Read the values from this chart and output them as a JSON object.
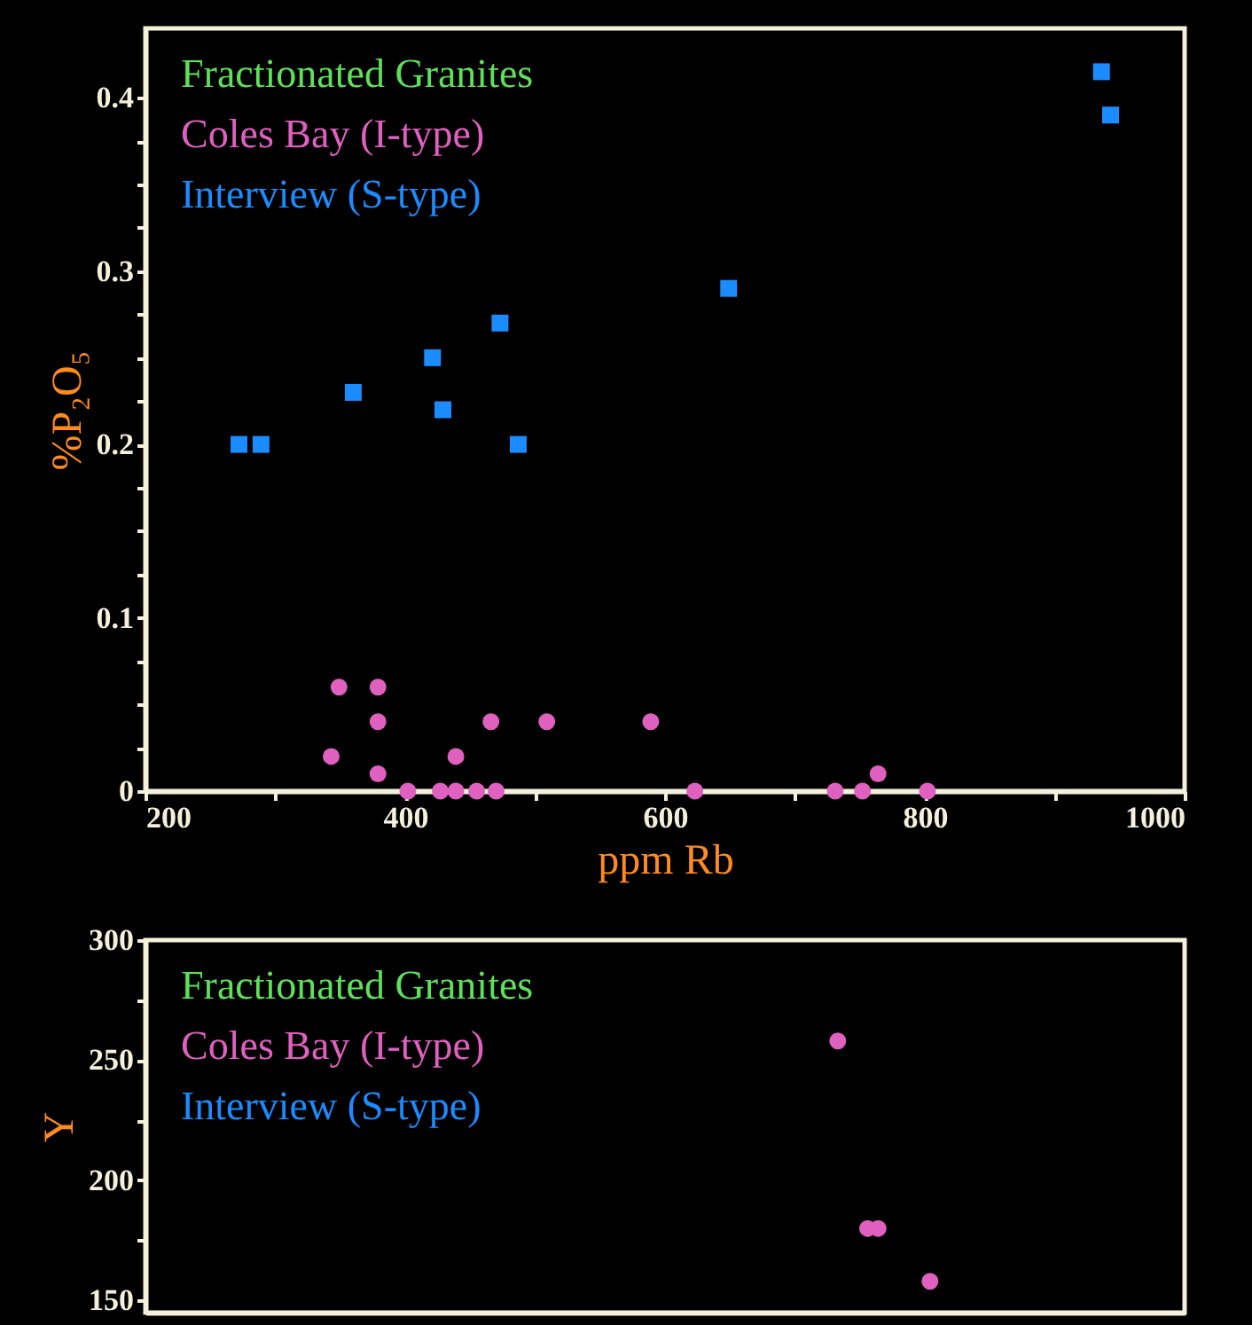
{
  "chart_data": [
    {
      "type": "scatter",
      "xlabel": "ppm Rb",
      "ylabel": "%P₂O₅",
      "legend": "top left",
      "grid": false,
      "xlim": [
        200,
        1000
      ],
      "xticks": [
        200,
        {
          "value": 300,
          "label": null
        },
        400,
        {
          "value": 500,
          "label": null
        },
        600,
        {
          "value": 700,
          "label": null
        },
        800,
        {
          "value": 900,
          "label": null
        },
        1000
      ],
      "ylim": [
        0,
        0.44
      ],
      "yticks": [
        {
          "value": 0,
          "label": "0"
        },
        {
          "value": 0.025,
          "label": null
        },
        {
          "value": 0.05,
          "label": null
        },
        {
          "value": 0.075,
          "label": null
        },
        0.1,
        {
          "value": 0.125,
          "label": null
        },
        {
          "value": 0.15,
          "label": null
        },
        {
          "value": 0.175,
          "label": null
        },
        0.2,
        {
          "value": 0.225,
          "label": null
        },
        {
          "value": 0.25,
          "label": null
        },
        {
          "value": 0.275,
          "label": null
        },
        0.3,
        {
          "value": 0.325,
          "label": null
        },
        {
          "value": 0.35,
          "label": null
        },
        {
          "value": 0.375,
          "label": null
        },
        0.4
      ],
      "series": [
        {
          "name": "Fractionated Granites",
          "color": "#5ee05a",
          "marker": "circle"
        },
        {
          "name": "Coles Bay (I-type)",
          "color": "#e060c0",
          "marker": "circle",
          "x": [
            349,
            379,
            379,
            343,
            379,
            402,
            427,
            439,
            439,
            455,
            466,
            470,
            509,
            589,
            623,
            731,
            752,
            764,
            802
          ],
          "values": [
            0.06,
            0.06,
            0.04,
            0.02,
            0.01,
            0,
            0,
            0,
            0.02,
            0,
            0.04,
            0,
            0.04,
            0.04,
            0,
            0,
            0,
            0.01,
            0
          ]
        },
        {
          "name": "Interview (S-type)",
          "color": "#1a8cff",
          "marker": "square",
          "x": [
            272,
            289,
            360,
            421,
            429,
            473,
            487,
            649,
            936,
            943
          ],
          "values": [
            0.2,
            0.2,
            0.23,
            0.25,
            0.22,
            0.27,
            0.2,
            0.29,
            0.415,
            0.39
          ]
        }
      ]
    },
    {
      "type": "scatter",
      "ylabel": "Y",
      "legend": "top left",
      "grid": false,
      "tick_labels": "y",
      "xlim": [
        200,
        1000
      ],
      "ylim": [
        145,
        300
      ],
      "yticks": [
        150,
        {
          "value": 175,
          "label": null
        },
        200,
        {
          "value": 225,
          "label": null
        },
        250,
        {
          "value": 275,
          "label": null
        },
        300
      ],
      "series": [
        {
          "name": "Fractionated Granites",
          "color": "#5ee05a",
          "marker": "circle"
        },
        {
          "name": "Coles Bay (I-type)",
          "color": "#e060c0",
          "marker": "circle",
          "x": [
            733,
            756,
            764,
            804
          ],
          "values": [
            258,
            180,
            180,
            158
          ]
        },
        {
          "name": "Interview (S-type)",
          "color": "#1a8cff",
          "marker": "square"
        }
      ]
    }
  ]
}
